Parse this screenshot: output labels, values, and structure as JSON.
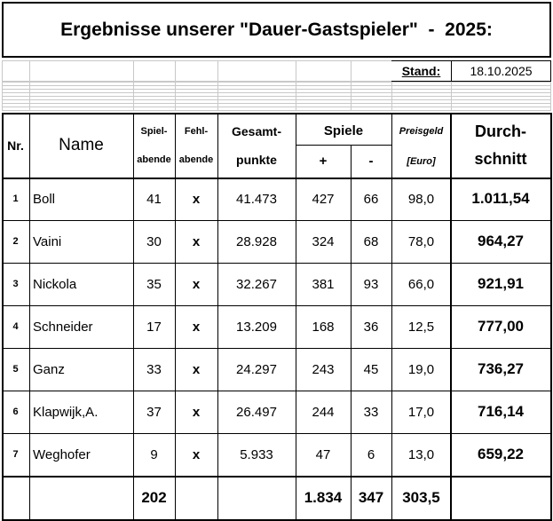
{
  "title": "Ergebnisse unserer \"Dauer-Gastspieler\"  -  2025:",
  "stand_label": "Stand:",
  "stand_date": "18.10.2025",
  "header": {
    "nr": "Nr.",
    "name": "Name",
    "spielabende": [
      "Spiel-",
      "abende"
    ],
    "fehlabende": [
      "Fehl-",
      "abende"
    ],
    "gesamtpunkte": [
      "Gesamt-",
      "punkte"
    ],
    "spiele": "Spiele",
    "plus": "+",
    "minus": "-",
    "preisgeld": [
      "Preisgeld",
      "[Euro]"
    ],
    "durchschnitt": [
      "Durch-",
      "schnitt"
    ]
  },
  "rows": [
    [
      "1",
      "Boll",
      "41",
      "x",
      "41.473",
      "427",
      "66",
      "98,0",
      "1.011,54"
    ],
    [
      "2",
      "Vaini",
      "30",
      "x",
      "28.928",
      "324",
      "68",
      "78,0",
      "964,27"
    ],
    [
      "3",
      "Nickola",
      "35",
      "x",
      "32.267",
      "381",
      "93",
      "66,0",
      "921,91"
    ],
    [
      "4",
      "Schneider",
      "17",
      "x",
      "13.209",
      "168",
      "36",
      "12,5",
      "777,00"
    ],
    [
      "5",
      "Ganz",
      "33",
      "x",
      "24.297",
      "243",
      "45",
      "19,0",
      "736,27"
    ],
    [
      "6",
      "Klapwijk,A.",
      "37",
      "x",
      "26.497",
      "244",
      "33",
      "17,0",
      "716,14"
    ],
    [
      "7",
      "Weghofer",
      "9",
      "x",
      "5.933",
      "47",
      "6",
      "13,0",
      "659,22"
    ]
  ],
  "totals": {
    "spielabende": "202",
    "plus": "1.834",
    "minus": "347",
    "preisgeld": "303,5"
  }
}
